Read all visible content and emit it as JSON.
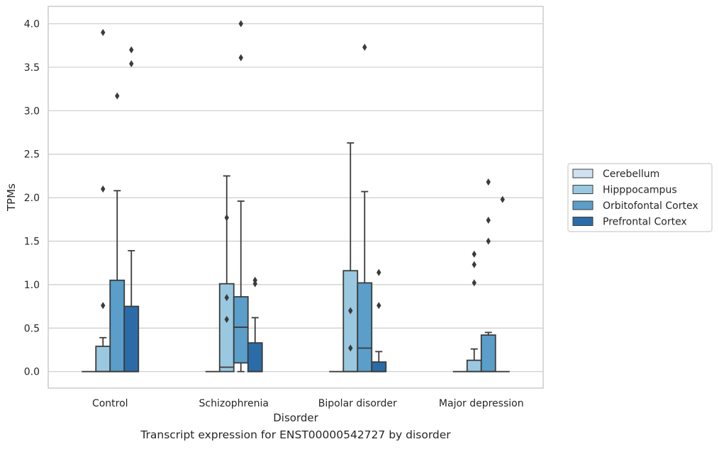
{
  "chart_data": {
    "type": "box",
    "xlabel": "Disorder",
    "ylabel": "TPMs",
    "caption": "Transcript expression for ENST00000542727 by disorder",
    "ylim": [
      -0.19,
      4.2
    ],
    "yticks": [
      "0.0",
      "0.5",
      "1.0",
      "1.5",
      "2.0",
      "2.5",
      "3.0",
      "3.5",
      "4.0"
    ],
    "categories": [
      "Control",
      "Schizophrenia",
      "Bipolar disorder",
      "Major depression"
    ],
    "grid": "horizontal",
    "legend_position": "right",
    "series": [
      {
        "name": "Cerebellum",
        "color": "#d0e1f1",
        "boxes": [
          {
            "q1": 0,
            "median": 0,
            "q3": 0,
            "whislo": 0,
            "whishi": 0,
            "fliers": []
          },
          {
            "q1": 0,
            "median": 0,
            "q3": 0,
            "whislo": 0,
            "whishi": 0,
            "fliers": []
          },
          {
            "q1": 0,
            "median": 0,
            "q3": 0,
            "whislo": 0,
            "whishi": 0,
            "fliers": []
          },
          {
            "q1": 0,
            "median": 0,
            "q3": 0,
            "whislo": 0,
            "whishi": 0,
            "fliers": []
          }
        ]
      },
      {
        "name": "Hipppocampus",
        "color": "#9ac8e0",
        "boxes": [
          {
            "q1": 0,
            "median": 0,
            "q3": 0.29,
            "whislo": 0,
            "whishi": 0.39,
            "fliers": [
              3.9,
              2.1,
              0.76
            ]
          },
          {
            "q1": 0,
            "median": 0.05,
            "q3": 1.01,
            "whislo": 0,
            "whishi": 2.25,
            "fliers": [
              1.77,
              0.85,
              0.6
            ]
          },
          {
            "q1": 0,
            "median": 0,
            "q3": 1.16,
            "whislo": 0,
            "whishi": 2.63,
            "fliers": [
              0.7,
              0.27
            ]
          },
          {
            "q1": 0,
            "median": 0,
            "q3": 0.13,
            "whislo": 0,
            "whishi": 0.26,
            "fliers": [
              1.35,
              1.23,
              1.02
            ]
          }
        ]
      },
      {
        "name": "Orbitofontal Cortex",
        "color": "#5a9ec9",
        "boxes": [
          {
            "q1": 0,
            "median": 0,
            "q3": 1.05,
            "whislo": 0,
            "whishi": 2.08,
            "fliers": [
              3.17
            ]
          },
          {
            "q1": 0.1,
            "median": 0.51,
            "q3": 0.86,
            "whislo": 0,
            "whishi": 1.96,
            "fliers": [
              4.0,
              3.61
            ]
          },
          {
            "q1": 0,
            "median": 0.27,
            "q3": 1.02,
            "whislo": 0,
            "whishi": 2.07,
            "fliers": [
              3.73
            ]
          },
          {
            "q1": 0,
            "median": 0,
            "q3": 0.42,
            "whislo": 0,
            "whishi": 0.45,
            "fliers": [
              2.18,
              1.74,
              1.5
            ]
          }
        ]
      },
      {
        "name": "Prefrontal Cortex",
        "color": "#2b6ca8",
        "boxes": [
          {
            "q1": 0,
            "median": 0,
            "q3": 0.75,
            "whislo": 0,
            "whishi": 1.39,
            "fliers": [
              3.7,
              3.54
            ]
          },
          {
            "q1": 0,
            "median": 0,
            "q3": 0.33,
            "whislo": 0,
            "whishi": 0.62,
            "fliers": [
              1.05,
              1.01
            ]
          },
          {
            "q1": 0,
            "median": 0,
            "q3": 0.11,
            "whislo": 0,
            "whishi": 0.23,
            "fliers": [
              1.14,
              0.76
            ]
          },
          {
            "q1": 0,
            "median": 0,
            "q3": 0,
            "whislo": 0,
            "whishi": 0,
            "fliers": [
              1.98
            ]
          }
        ]
      }
    ]
  }
}
